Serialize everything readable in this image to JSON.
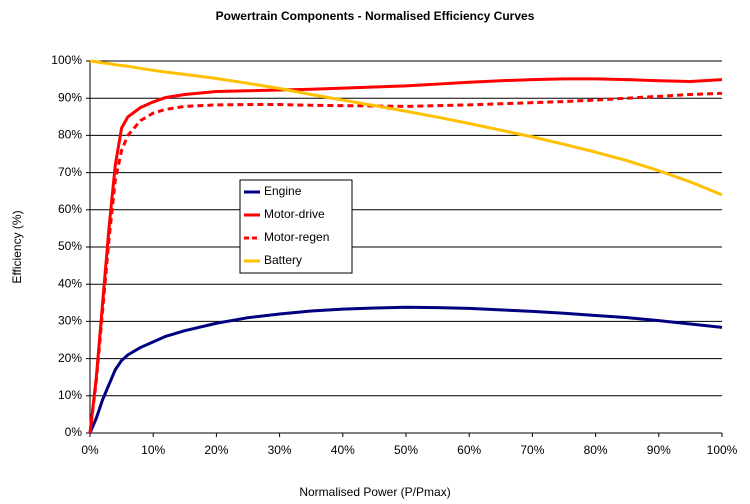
{
  "chart_data": {
    "type": "line",
    "title": "Powertrain Components - Normalised Efficiency Curves",
    "xlabel": "Normalised Power (P/Pmax)",
    "ylabel": "Efficiency (%)",
    "x": [
      0,
      1,
      2,
      3,
      4,
      5,
      6,
      8,
      10,
      12,
      15,
      20,
      25,
      30,
      35,
      40,
      45,
      50,
      55,
      60,
      65,
      70,
      75,
      80,
      85,
      90,
      95,
      100
    ],
    "series": [
      {
        "name": "Engine",
        "color": "#000080",
        "style": "solid",
        "values": [
          0,
          4,
          9,
          13,
          17,
          19.5,
          21,
          23,
          24.5,
          26,
          27.5,
          29.5,
          31,
          32,
          32.8,
          33.3,
          33.6,
          33.8,
          33.7,
          33.5,
          33.1,
          32.7,
          32.2,
          31.6,
          31,
          30.2,
          29.3,
          28.4
        ]
      },
      {
        "name": "Motor-drive",
        "color": "#ff0000",
        "style": "solid",
        "values": [
          0,
          15,
          35,
          55,
          72,
          82,
          85,
          87.5,
          89,
          90.2,
          91,
          91.8,
          92,
          92.2,
          92.4,
          92.7,
          93,
          93.3,
          93.8,
          94.3,
          94.7,
          95,
          95.2,
          95.2,
          95,
          94.7,
          94.5,
          95
        ]
      },
      {
        "name": "Motor-regen",
        "color": "#ff0000",
        "style": "dashed",
        "values": [
          0,
          14,
          33,
          52,
          68,
          76,
          80,
          84,
          86,
          87,
          87.8,
          88.2,
          88.3,
          88.3,
          88.1,
          88,
          87.9,
          87.8,
          88,
          88.2,
          88.5,
          88.8,
          89.1,
          89.5,
          90,
          90.5,
          91,
          91.3
        ]
      },
      {
        "name": "Battery",
        "color": "#ffc000",
        "style": "solid",
        "values": [
          100,
          99.8,
          99.5,
          99.3,
          99,
          98.8,
          98.6,
          98,
          97.5,
          97,
          96.4,
          95.3,
          94,
          92.6,
          91,
          89.5,
          88,
          86.5,
          84.9,
          83.2,
          81.4,
          79.6,
          77.6,
          75.5,
          73.2,
          70.5,
          67.5,
          64
        ]
      }
    ],
    "xlim": [
      0,
      100
    ],
    "ylim": [
      0,
      100
    ],
    "xticks": [
      {
        "value": 0,
        "label": "0%"
      },
      {
        "value": 10,
        "label": "10%"
      },
      {
        "value": 20,
        "label": "20%"
      },
      {
        "value": 30,
        "label": "30%"
      },
      {
        "value": 40,
        "label": "40%"
      },
      {
        "value": 50,
        "label": "50%"
      },
      {
        "value": 60,
        "label": "60%"
      },
      {
        "value": 70,
        "label": "70%"
      },
      {
        "value": 80,
        "label": "80%"
      },
      {
        "value": 90,
        "label": "90%"
      },
      {
        "value": 100,
        "label": "100%"
      }
    ],
    "yticks": [
      {
        "value": 0,
        "label": "0%"
      },
      {
        "value": 10,
        "label": "10%"
      },
      {
        "value": 20,
        "label": "20%"
      },
      {
        "value": 30,
        "label": "30%"
      },
      {
        "value": 40,
        "label": "40%"
      },
      {
        "value": 50,
        "label": "50%"
      },
      {
        "value": 60,
        "label": "60%"
      },
      {
        "value": 70,
        "label": "70%"
      },
      {
        "value": 80,
        "label": "80%"
      },
      {
        "value": 90,
        "label": "90%"
      },
      {
        "value": 100,
        "label": "100%"
      }
    ],
    "grid": true
  }
}
